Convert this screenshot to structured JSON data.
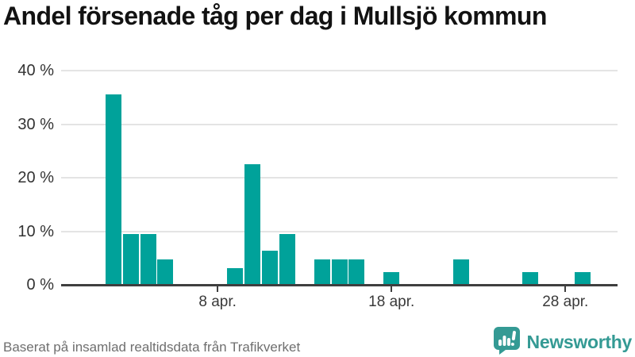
{
  "title": "Andel försenade tåg per dag i Mullsjö kommun",
  "footer": {
    "source": "Baserat på insamlad realtidsdata från Trafikverket",
    "brand": "Newsworthy"
  },
  "colors": {
    "bar": "#00A29A",
    "grid": "#E4E4E4",
    "axis": "#3F3F3F",
    "tick_text": "#3A3A3A",
    "muted_text": "#6F6F6F",
    "brand_teal": "#349A94",
    "title_text": "#121212"
  },
  "chart_data": {
    "type": "bar",
    "title": "Andel försenade tåg per dag i Mullsjö kommun",
    "xlabel": "",
    "ylabel": "",
    "x_unit": "day of April",
    "x": [
      2,
      3,
      4,
      5,
      9,
      10,
      11,
      12,
      14,
      15,
      16,
      18,
      22,
      26,
      29
    ],
    "values": [
      35.5,
      9.5,
      9.5,
      4.8,
      3.1,
      22.5,
      6.4,
      9.5,
      4.8,
      4.8,
      4.8,
      2.3,
      4.8,
      2.3,
      2.3
    ],
    "x_domain": [
      -1,
      31
    ],
    "ylim": [
      0,
      40
    ],
    "y_ticks": [
      {
        "v": 0,
        "label": "0 %"
      },
      {
        "v": 10,
        "label": "10 %"
      },
      {
        "v": 20,
        "label": "20 %"
      },
      {
        "v": 30,
        "label": "30 %"
      },
      {
        "v": 40,
        "label": "40 %"
      }
    ],
    "x_ticks": [
      {
        "day": 8,
        "label": "8 apr."
      },
      {
        "day": 18,
        "label": "18 apr."
      },
      {
        "day": 28,
        "label": "28 apr."
      }
    ],
    "grid": true,
    "legend": false
  }
}
